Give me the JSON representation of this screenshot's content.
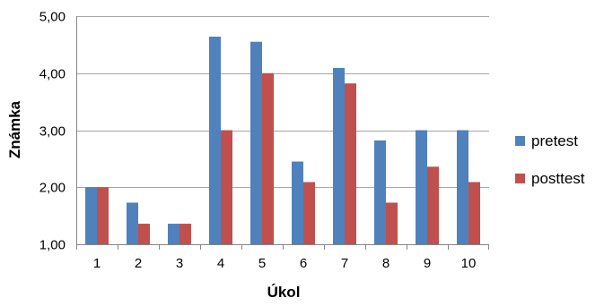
{
  "chart_data": {
    "type": "bar",
    "title": "",
    "xlabel": "Úkol",
    "ylabel": "Známka",
    "categories": [
      "1",
      "2",
      "3",
      "4",
      "5",
      "6",
      "7",
      "8",
      "9",
      "10"
    ],
    "series": [
      {
        "name": "pretest",
        "color": "#4F81BD",
        "values": [
          2.0,
          1.73,
          1.36,
          4.64,
          4.55,
          2.45,
          4.09,
          2.82,
          3.0,
          3.0
        ]
      },
      {
        "name": "posttest",
        "color": "#C0504D",
        "values": [
          2.0,
          1.36,
          1.36,
          3.0,
          4.0,
          2.09,
          3.82,
          1.73,
          2.36,
          2.09
        ]
      }
    ],
    "ylim": [
      1.0,
      5.0
    ],
    "yticks": [
      1.0,
      2.0,
      3.0,
      4.0,
      5.0
    ],
    "ytick_labels": [
      "1,00",
      "2,00",
      "3,00",
      "4,00",
      "5,00"
    ],
    "grid": true,
    "legend_position": "right"
  }
}
